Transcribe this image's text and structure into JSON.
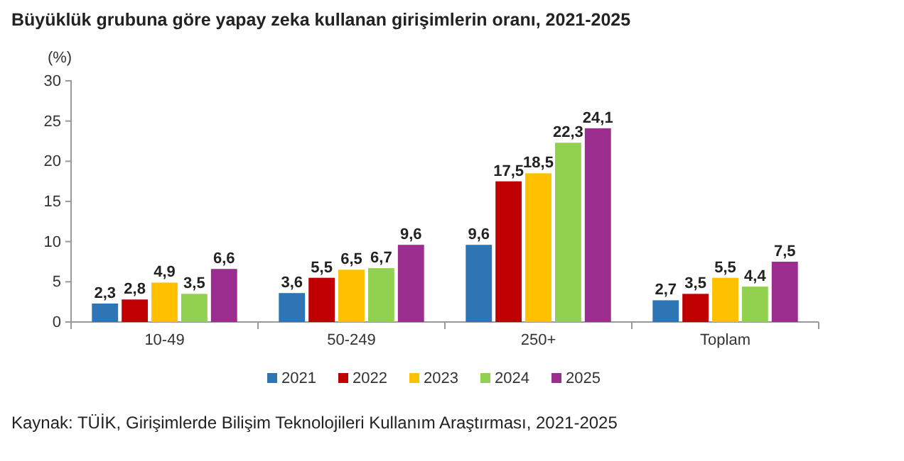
{
  "chart_data": {
    "type": "bar",
    "title": "Büyüklük grubuna göre yapay zeka kullanan girişimlerin oranı, 2021-2025",
    "ylabel": "(%)",
    "categories": [
      "10-49",
      "50-249",
      "250+",
      "Toplam"
    ],
    "series": [
      {
        "name": "2021",
        "color": "#2e75b6",
        "values": [
          2.3,
          3.6,
          9.6,
          2.7
        ],
        "value_labels": [
          "2,3",
          "3,6",
          "9,6",
          "2,7"
        ]
      },
      {
        "name": "2022",
        "color": "#c00000",
        "values": [
          2.8,
          5.5,
          17.5,
          3.5
        ],
        "value_labels": [
          "2,8",
          "5,5",
          "17,5",
          "3,5"
        ]
      },
      {
        "name": "2023",
        "color": "#ffc000",
        "values": [
          4.9,
          6.5,
          18.5,
          5.5
        ],
        "value_labels": [
          "4,9",
          "6,5",
          "18,5",
          "5,5"
        ]
      },
      {
        "name": "2024",
        "color": "#92d050",
        "values": [
          3.5,
          6.7,
          22.3,
          4.4
        ],
        "value_labels": [
          "3,5",
          "6,7",
          "22,3",
          "4,4"
        ]
      },
      {
        "name": "2025",
        "color": "#9b2d8f",
        "values": [
          6.6,
          9.6,
          24.1,
          7.5
        ],
        "value_labels": [
          "6,6",
          "9,6",
          "24,1",
          "7,5"
        ]
      }
    ],
    "ylim": [
      0,
      30
    ],
    "yticks": [
      0,
      5,
      10,
      15,
      20,
      25,
      30
    ],
    "legend": "bottom",
    "annotations": [
      "Kaynak: TÜİK, Girişimlerde Bilişim Teknolojileri Kullanım Araştırması, 2021-2025"
    ]
  }
}
